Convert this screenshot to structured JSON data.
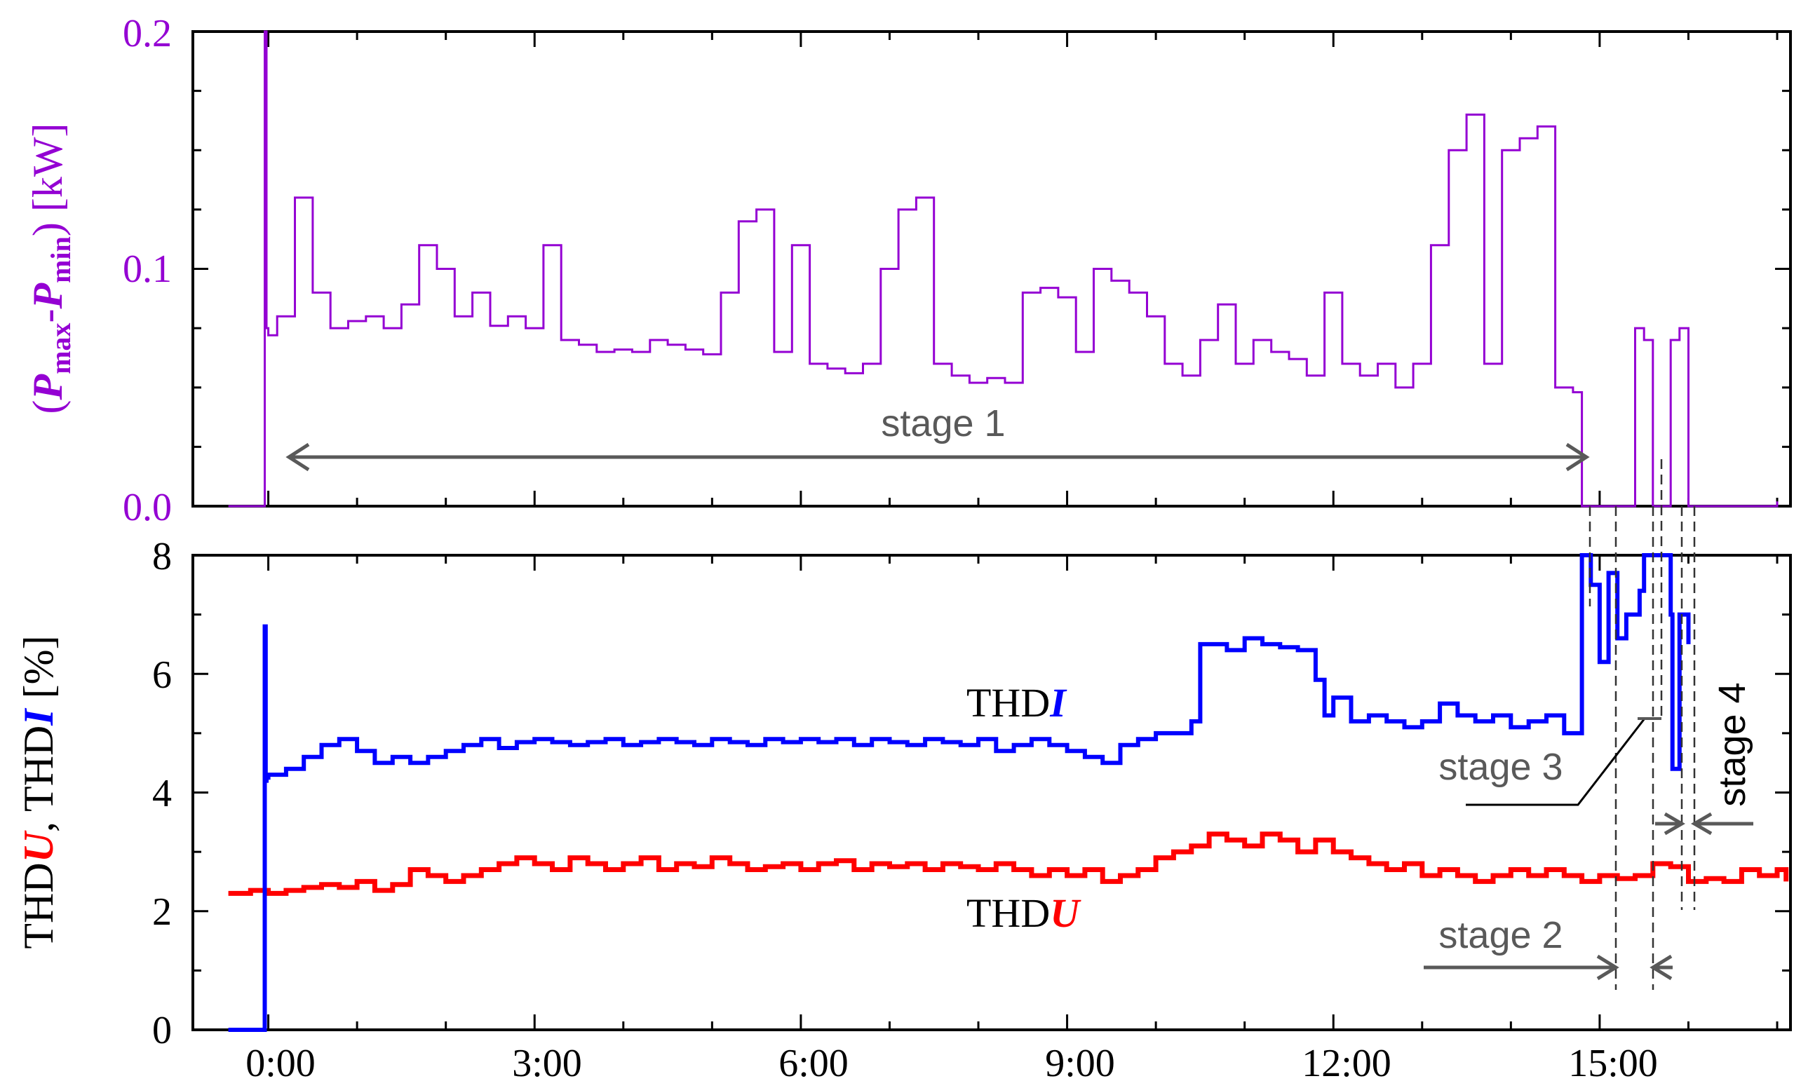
{
  "chart_data": [
    {
      "type": "line",
      "panel": "top",
      "ylabel": {
        "prefix": "(",
        "p1": "P",
        "s1": "max",
        "dash": "-",
        "p2": "P",
        "s2": "min",
        "suffix": ") [kW]"
      },
      "ylim": [
        0,
        0.2
      ],
      "yticks": [
        "0.0",
        "0.1",
        "0.2"
      ],
      "xlim": [
        -0.85,
        17.15
      ],
      "series": [
        {
          "name": "Pmax-Pmin",
          "color": "#9400D3",
          "x": [
            -0.45,
            -0.05,
            -0.04,
            -0.02,
            0.0,
            0.1,
            0.3,
            0.5,
            0.7,
            0.9,
            1.1,
            1.3,
            1.5,
            1.7,
            1.9,
            2.1,
            2.3,
            2.5,
            2.7,
            2.9,
            3.1,
            3.3,
            3.5,
            3.7,
            3.9,
            4.1,
            4.3,
            4.5,
            4.7,
            4.9,
            5.1,
            5.3,
            5.5,
            5.7,
            5.9,
            6.1,
            6.3,
            6.5,
            6.7,
            6.9,
            7.1,
            7.3,
            7.5,
            7.7,
            7.9,
            8.1,
            8.3,
            8.5,
            8.7,
            8.9,
            9.1,
            9.3,
            9.5,
            9.7,
            9.9,
            10.1,
            10.3,
            10.5,
            10.7,
            10.9,
            11.1,
            11.3,
            11.5,
            11.7,
            11.9,
            12.1,
            12.3,
            12.5,
            12.7,
            12.9,
            13.1,
            13.3,
            13.5,
            13.7,
            13.9,
            14.1,
            14.3,
            14.5,
            14.7,
            14.78,
            14.8,
            15.0,
            15.2,
            15.4,
            15.5,
            15.6,
            15.8,
            15.9,
            16.0,
            16.5,
            17.0
          ],
          "y": [
            0.0,
            0.0,
            0.2,
            0.075,
            0.072,
            0.08,
            0.13,
            0.09,
            0.075,
            0.078,
            0.08,
            0.075,
            0.085,
            0.11,
            0.1,
            0.08,
            0.09,
            0.076,
            0.08,
            0.075,
            0.11,
            0.07,
            0.068,
            0.065,
            0.066,
            0.065,
            0.07,
            0.068,
            0.066,
            0.064,
            0.09,
            0.12,
            0.125,
            0.065,
            0.11,
            0.06,
            0.058,
            0.056,
            0.06,
            0.1,
            0.125,
            0.13,
            0.06,
            0.055,
            0.052,
            0.054,
            0.052,
            0.09,
            0.092,
            0.088,
            0.065,
            0.1,
            0.095,
            0.09,
            0.08,
            0.06,
            0.055,
            0.07,
            0.085,
            0.06,
            0.07,
            0.065,
            0.062,
            0.055,
            0.09,
            0.06,
            0.055,
            0.06,
            0.05,
            0.06,
            0.11,
            0.15,
            0.165,
            0.06,
            0.15,
            0.155,
            0.16,
            0.05,
            0.048,
            0.048,
            0.0,
            0.0,
            0.0,
            0.075,
            0.07,
            0.0,
            0.07,
            0.075,
            0.0,
            0.0,
            0.002
          ]
        }
      ],
      "annotations": [
        {
          "text": "stage 1"
        }
      ]
    },
    {
      "type": "line",
      "panel": "bottom",
      "ylabel": {
        "p1": "THD",
        "u": "U",
        "comma": ", THD",
        "i": "I",
        "suffix": " [%]"
      },
      "ylim": [
        0,
        8
      ],
      "yticks": [
        "0",
        "2",
        "4",
        "6",
        "8"
      ],
      "xlim": [
        -0.85,
        17.15
      ],
      "xticks": [
        "0:00",
        "3:00",
        "6:00",
        "9:00",
        "12:00",
        "15:00"
      ],
      "xtick_values": [
        0,
        3,
        6,
        9,
        12,
        15
      ],
      "series": [
        {
          "name": "THDI",
          "color": "#0000FF",
          "x": [
            -0.45,
            -0.05,
            -0.04,
            -0.03,
            -0.02,
            0.0,
            0.2,
            0.4,
            0.6,
            0.8,
            1.0,
            1.2,
            1.4,
            1.6,
            1.8,
            2.0,
            2.2,
            2.4,
            2.6,
            2.8,
            3.0,
            3.2,
            3.4,
            3.6,
            3.8,
            4.0,
            4.2,
            4.4,
            4.6,
            4.8,
            5.0,
            5.2,
            5.4,
            5.6,
            5.8,
            6.0,
            6.2,
            6.4,
            6.6,
            6.8,
            7.0,
            7.2,
            7.4,
            7.6,
            7.8,
            8.0,
            8.2,
            8.4,
            8.6,
            8.8,
            9.0,
            9.2,
            9.4,
            9.6,
            9.8,
            10.0,
            10.2,
            10.4,
            10.5,
            10.6,
            10.8,
            11.0,
            11.2,
            11.4,
            11.6,
            11.8,
            11.9,
            12.0,
            12.2,
            12.4,
            12.6,
            12.8,
            13.0,
            13.2,
            13.4,
            13.6,
            13.8,
            14.0,
            14.2,
            14.4,
            14.6,
            14.78,
            14.8,
            14.9,
            15.0,
            15.1,
            15.2,
            15.3,
            15.45,
            15.5,
            15.8,
            15.82,
            15.9,
            16.0
          ],
          "y": [
            0.0,
            0.0,
            6.8,
            4.2,
            4.25,
            4.3,
            4.4,
            4.6,
            4.8,
            4.9,
            4.7,
            4.5,
            4.6,
            4.5,
            4.6,
            4.7,
            4.8,
            4.9,
            4.75,
            4.85,
            4.9,
            4.85,
            4.8,
            4.85,
            4.9,
            4.8,
            4.85,
            4.9,
            4.85,
            4.8,
            4.9,
            4.85,
            4.8,
            4.9,
            4.85,
            4.9,
            4.85,
            4.9,
            4.8,
            4.9,
            4.85,
            4.8,
            4.9,
            4.85,
            4.8,
            4.9,
            4.7,
            4.8,
            4.9,
            4.8,
            4.7,
            4.6,
            4.5,
            4.8,
            4.9,
            5.0,
            5.0,
            5.2,
            6.5,
            6.5,
            6.4,
            6.6,
            6.5,
            6.45,
            6.4,
            5.9,
            5.3,
            5.6,
            5.2,
            5.3,
            5.2,
            5.1,
            5.2,
            5.5,
            5.3,
            5.2,
            5.3,
            5.1,
            5.2,
            5.3,
            5.0,
            5.0,
            8.0,
            7.5,
            6.2,
            7.7,
            6.6,
            7.0,
            7.4,
            8.0,
            7.0,
            4.4,
            7.0,
            6.5
          ]
        },
        {
          "name": "THDU",
          "color": "#FF0000",
          "x": [
            -0.45,
            -0.2,
            0.0,
            0.2,
            0.4,
            0.6,
            0.8,
            1.0,
            1.2,
            1.4,
            1.6,
            1.8,
            2.0,
            2.2,
            2.4,
            2.6,
            2.8,
            3.0,
            3.2,
            3.4,
            3.6,
            3.8,
            4.0,
            4.2,
            4.4,
            4.6,
            4.8,
            5.0,
            5.2,
            5.4,
            5.6,
            5.8,
            6.0,
            6.2,
            6.4,
            6.6,
            6.8,
            7.0,
            7.2,
            7.4,
            7.6,
            7.8,
            8.0,
            8.2,
            8.4,
            8.6,
            8.8,
            9.0,
            9.2,
            9.4,
            9.6,
            9.8,
            10.0,
            10.2,
            10.4,
            10.6,
            10.8,
            11.0,
            11.2,
            11.4,
            11.6,
            11.8,
            12.0,
            12.2,
            12.4,
            12.6,
            12.8,
            13.0,
            13.2,
            13.4,
            13.6,
            13.8,
            14.0,
            14.2,
            14.4,
            14.6,
            14.8,
            15.0,
            15.2,
            15.4,
            15.6,
            15.8,
            16.0,
            16.2,
            16.4,
            16.6,
            16.8,
            17.0,
            17.1
          ],
          "y": [
            2.3,
            2.35,
            2.3,
            2.35,
            2.4,
            2.45,
            2.4,
            2.5,
            2.35,
            2.45,
            2.7,
            2.6,
            2.5,
            2.6,
            2.7,
            2.8,
            2.9,
            2.8,
            2.7,
            2.9,
            2.8,
            2.7,
            2.8,
            2.9,
            2.7,
            2.8,
            2.75,
            2.9,
            2.8,
            2.7,
            2.75,
            2.8,
            2.7,
            2.8,
            2.85,
            2.7,
            2.8,
            2.75,
            2.8,
            2.7,
            2.8,
            2.75,
            2.7,
            2.8,
            2.7,
            2.6,
            2.7,
            2.6,
            2.7,
            2.5,
            2.6,
            2.7,
            2.9,
            3.0,
            3.1,
            3.3,
            3.2,
            3.1,
            3.3,
            3.2,
            3.0,
            3.2,
            3.0,
            2.9,
            2.8,
            2.7,
            2.8,
            2.6,
            2.7,
            2.6,
            2.5,
            2.6,
            2.7,
            2.6,
            2.7,
            2.6,
            2.5,
            2.6,
            2.55,
            2.6,
            2.8,
            2.75,
            2.5,
            2.55,
            2.5,
            2.7,
            2.6,
            2.7,
            2.5
          ]
        }
      ],
      "annotations": [
        {
          "prefix": "THD",
          "emph": "I",
          "color": "#0000FF"
        },
        {
          "prefix": "THD",
          "emph": "U",
          "color": "#FF0000"
        },
        {
          "text": "stage 2"
        },
        {
          "text": "stage 3"
        },
        {
          "text": "stage 4"
        }
      ]
    }
  ]
}
